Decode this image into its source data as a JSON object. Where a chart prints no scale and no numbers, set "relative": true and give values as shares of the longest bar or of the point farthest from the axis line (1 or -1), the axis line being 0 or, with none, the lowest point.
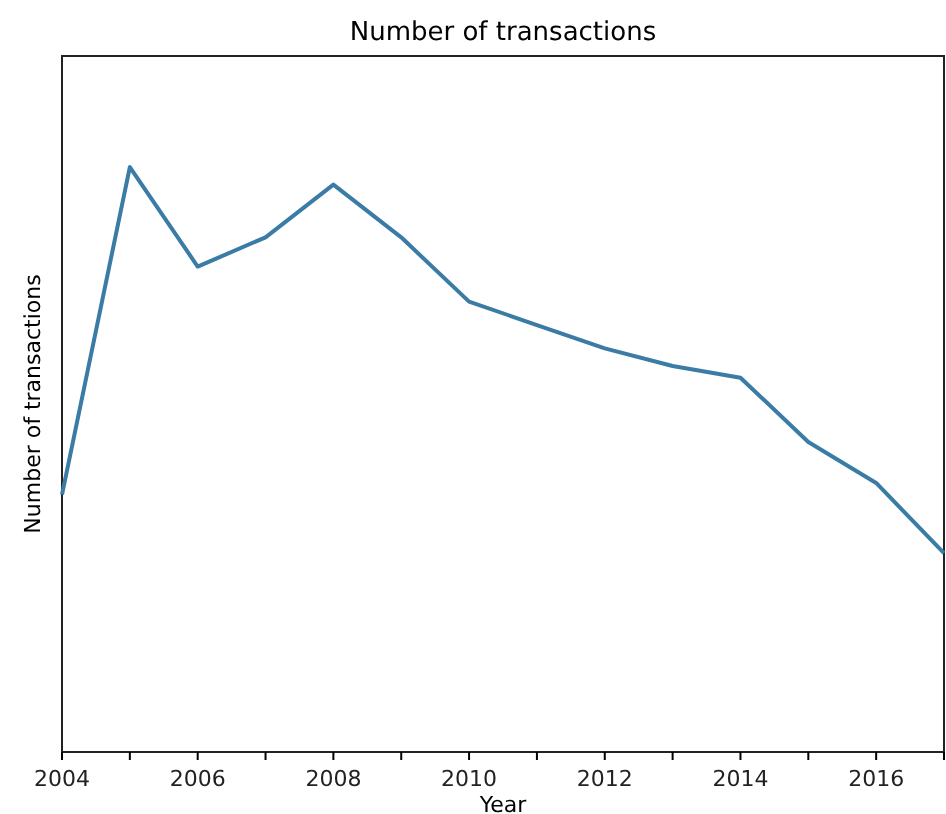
{
  "chart_data": {
    "type": "line",
    "title": "Number of transactions",
    "xlabel": "Year",
    "ylabel": "Number of transactions",
    "relative": true,
    "x": [
      2004,
      2005,
      2006,
      2007,
      2008,
      2009,
      2010,
      2011,
      2012,
      2013,
      2014,
      2015,
      2016,
      2017
    ],
    "series": [
      {
        "color": "#3a7ca5",
        "values": [
          0.44,
          1,
          0.83,
          0.88,
          0.97,
          0.88,
          0.77,
          0.73,
          0.69,
          0.66,
          0.64,
          0.53,
          0.46,
          0.34
        ]
      }
    ],
    "xlim": [
      2004,
      2017
    ],
    "xticks": [
      2004,
      {
        "value": 2005,
        "label": null
      },
      2006,
      {
        "value": 2007,
        "label": null
      },
      2008,
      {
        "value": 2009,
        "label": null
      },
      2010,
      {
        "value": 2011,
        "label": null
      },
      2012,
      {
        "value": 2013,
        "label": null
      },
      2014,
      {
        "value": 2015,
        "label": null
      },
      2016,
      {
        "value": 2017,
        "label": null
      }
    ],
    "grid": false,
    "marker": "none",
    "line_style": "solid"
  }
}
